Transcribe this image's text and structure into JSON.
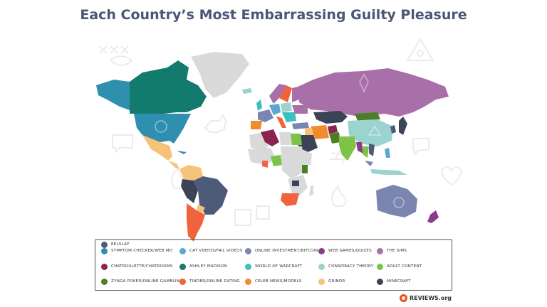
{
  "title": "Each Country’s Most Embarrassing Guilty Pleasure",
  "brand": "REVIEWS.org",
  "colors": {
    "symptom": "#2f8fae",
    "cat": "#5ea6cf",
    "invest": "#7a86b0",
    "webgames": "#8b3a8c",
    "sims": "#a86fa8",
    "chatroulette": "#8c2250",
    "ashley": "#137a6e",
    "wow": "#3bbfbf",
    "conspiracy": "#9dd3cf",
    "adult": "#7cc348",
    "zynga": "#4c7f24",
    "tinder": "#f0633d",
    "celeb": "#f28a2e",
    "grindr": "#f6c27a",
    "minecraft": "#3a4456",
    "eelslap": "#4d5a78",
    "nodata": "#d9d9d9",
    "background_icons": "#efefef"
  },
  "legend": [
    {
      "label": "SYMPTOM CHECKER/WEB MD",
      "color": "#2f8fae"
    },
    {
      "label": "CAT VIDEOS/FAIL VIDEOS",
      "color": "#5ea6cf"
    },
    {
      "label": "ONLINE INVESTMENT/BITCOIN",
      "color": "#7a86b0"
    },
    {
      "label": "WEB GAMES/QUIZES",
      "color": "#8b3a8c"
    },
    {
      "label": "THE SIMS",
      "color": "#a86fa8"
    },
    {
      "label": "CHATROULETTE/CHATROOMS",
      "color": "#8c2250"
    },
    {
      "label": "ASHLEY MADISON",
      "color": "#137a6e"
    },
    {
      "label": "WORLD OF WARCRAFT",
      "color": "#3bbfbf"
    },
    {
      "label": "CONSPIRACY THEORY",
      "color": "#9dd3cf"
    },
    {
      "label": "ADULT CONTENT",
      "color": "#7cc348"
    },
    {
      "label": "ZYNGA POKER/ONLINE GAMBLING",
      "color": "#4c7f24"
    },
    {
      "label": "TINDER/ONLINE DATING",
      "color": "#f0633d"
    },
    {
      "label": "CELEB NEWS/MODELS",
      "color": "#f28a2e"
    },
    {
      "label": "GRINDR",
      "color": "#f6c27a"
    },
    {
      "label": "MINECRAFT",
      "color": "#3a4456"
    },
    {
      "label": "EELSLAP",
      "color": "#4d5a78"
    }
  ]
}
